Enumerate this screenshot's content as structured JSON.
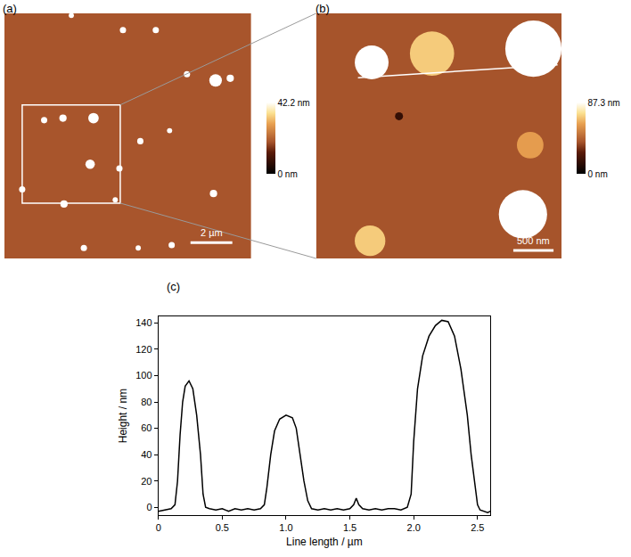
{
  "chart_data": [
    {
      "type": "scatter",
      "title": "(a)",
      "tick_labels": false,
      "xlim": [
        0,
        11.8
      ],
      "ylim": [
        0,
        11.7
      ],
      "x": [
        3.2,
        5.67,
        7.24,
        8.73,
        10.1,
        10.8,
        1.9,
        2.8,
        4.26,
        4.1,
        6.5,
        7.9,
        5.5,
        0.85,
        2.85,
        5.3,
        10.0,
        3.8,
        6.4,
        8.0
      ],
      "y": [
        11.6,
        10.9,
        10.9,
        8.8,
        8.5,
        8.6,
        6.6,
        6.7,
        6.7,
        4.5,
        5.6,
        6.1,
        4.3,
        3.3,
        2.6,
        2.8,
        3.1,
        0.5,
        0.5,
        0.64
      ],
      "size": [
        0.25,
        0.3,
        0.3,
        0.3,
        0.6,
        0.35,
        0.3,
        0.35,
        0.5,
        0.45,
        0.3,
        0.25,
        0.3,
        0.3,
        0.35,
        0.25,
        0.35,
        0.3,
        0.25,
        0.3
      ],
      "height": [
        45,
        50,
        50,
        50,
        60,
        50,
        50,
        50,
        60,
        60,
        50,
        45,
        50,
        50,
        50,
        45,
        50,
        50,
        45,
        50
      ],
      "background_height": 19,
      "colorbar": {
        "range": [
          0,
          42.2
        ],
        "ticks": [
          {
            "value": 0,
            "label": "0 nm"
          },
          {
            "value": 42.2,
            "label": "42.2 nm"
          }
        ]
      },
      "scale_bar": {
        "length": 2,
        "label": "2 µm",
        "x": 8.9,
        "y": 0.75
      },
      "zoom_box": {
        "x": [
          0.85,
          5.54
        ],
        "y": [
          2.64,
          7.33
        ]
      }
    },
    {
      "type": "scatter",
      "title": "(b)",
      "tick_labels": false,
      "xlim": [
        0,
        3.05
      ],
      "ylim": [
        0,
        3.05
      ],
      "x": [
        0.69,
        1.44,
        2.7,
        1.03,
        2.66,
        2.57,
        0.67
      ],
      "y": [
        2.44,
        2.55,
        2.61,
        1.77,
        1.41,
        0.55,
        0.22
      ],
      "size": [
        0.42,
        0.55,
        0.7,
        0.1,
        0.33,
        0.6,
        0.38
      ],
      "height": [
        96,
        70,
        142,
        15,
        60,
        110,
        70
      ],
      "background_height": 39,
      "colorbar": {
        "range": [
          0,
          87.3
        ],
        "ticks": [
          {
            "value": 0,
            "label": "0 nm"
          },
          {
            "value": 87.3,
            "label": "87.3 nm"
          }
        ]
      },
      "scale_bar": {
        "length": 0.5,
        "label": "500 nm",
        "x": 2.45,
        "y": 0.1
      },
      "profile_line": {
        "x": [
          0.52,
          3.0
        ],
        "y": [
          2.25,
          2.41
        ]
      }
    },
    {
      "type": "line",
      "title": "(c)",
      "xlabel": "Line length / µm",
      "ylabel": "Height / nm",
      "color": "#000000",
      "grid": false,
      "xlim": [
        0,
        2.6
      ],
      "ylim": [
        -6,
        145
      ],
      "xticks": [
        0,
        0.5,
        {
          "value": 1,
          "label": "1.0"
        },
        1.5,
        {
          "value": 2,
          "label": "2.0"
        },
        2.5
      ],
      "yticks": [
        0,
        20,
        40,
        60,
        80,
        100,
        120,
        140
      ],
      "x": [
        0,
        0.05,
        0.1,
        0.13,
        0.15,
        0.17,
        0.19,
        0.21,
        0.24,
        0.27,
        0.3,
        0.33,
        0.35,
        0.37,
        0.4,
        0.45,
        0.5,
        0.55,
        0.6,
        0.65,
        0.7,
        0.75,
        0.8,
        0.83,
        0.85,
        0.88,
        0.91,
        0.95,
        1.0,
        1.05,
        1.08,
        1.11,
        1.14,
        1.17,
        1.2,
        1.25,
        1.3,
        1.35,
        1.4,
        1.45,
        1.5,
        1.53,
        1.55,
        1.57,
        1.6,
        1.65,
        1.7,
        1.75,
        1.8,
        1.85,
        1.9,
        1.95,
        1.98,
        2.0,
        2.03,
        2.07,
        2.12,
        2.17,
        2.22,
        2.27,
        2.32,
        2.37,
        2.42,
        2.45,
        2.48,
        2.5,
        2.52,
        2.55,
        2.58,
        2.6
      ],
      "values": [
        -3,
        -2,
        -1,
        2,
        20,
        55,
        80,
        92,
        96,
        90,
        70,
        40,
        10,
        0,
        -1,
        -2,
        -1,
        -3,
        -1,
        -2,
        -1,
        -2,
        -1,
        2,
        15,
        40,
        58,
        67,
        70,
        68,
        60,
        40,
        20,
        5,
        -1,
        -2,
        -1,
        -2,
        -1,
        -2,
        -1,
        2,
        7,
        2,
        -1,
        -2,
        -1,
        -2,
        -1,
        -1,
        -2,
        0,
        10,
        50,
        90,
        115,
        130,
        138,
        142,
        141,
        130,
        105,
        70,
        40,
        15,
        2,
        -2,
        -3,
        -4,
        -3
      ]
    }
  ]
}
